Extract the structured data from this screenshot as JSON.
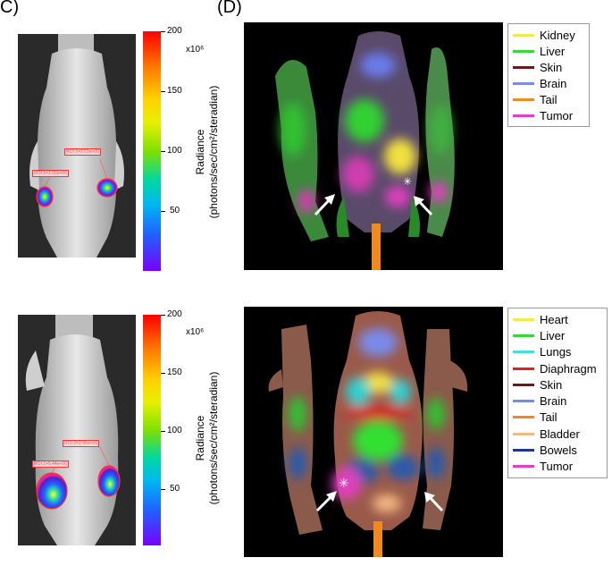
{
  "panels": {
    "c_label": "C)",
    "d_label": "(D)"
  },
  "scale": {
    "unit": "x10⁶",
    "ticks": [
      "200",
      "150",
      "100",
      "50"
    ],
    "axis_label_line1": "Radiance",
    "axis_label_line2": "(photons/sec/cm²/steradian)"
  },
  "top_rois": [
    "ROI 2=2.61e+06",
    "ROI 1=1.93e+06"
  ],
  "bottom_rois": [
    "ROI 2=2.96e+06",
    "ROI 1=5.44e+06"
  ],
  "legend_top": [
    {
      "label": "Kidney",
      "color": "#f5e84a"
    },
    {
      "label": "Liver",
      "color": "#35d935"
    },
    {
      "label": "Skin",
      "color": "#6a1a1a"
    },
    {
      "label": "Brain",
      "color": "#7a8ae8"
    },
    {
      "label": "Tail",
      "color": "#f08a20"
    },
    {
      "label": "Tumor",
      "color": "#e83cc8"
    }
  ],
  "legend_bottom": [
    {
      "label": "Heart",
      "color": "#f5e84a"
    },
    {
      "label": "Liver",
      "color": "#35d935"
    },
    {
      "label": "Lungs",
      "color": "#40e0e0"
    },
    {
      "label": "Diaphragm",
      "color": "#e02020"
    },
    {
      "label": "Skin",
      "color": "#6a1a1a"
    },
    {
      "label": "Brain",
      "color": "#7a8ae8"
    },
    {
      "label": "Tail",
      "color": "#f08a20"
    },
    {
      "label": "Bladder",
      "color": "#f5b880"
    },
    {
      "label": "Bowels",
      "color": "#1a3a8a"
    },
    {
      "label": "Tumor",
      "color": "#e83cc8"
    }
  ]
}
